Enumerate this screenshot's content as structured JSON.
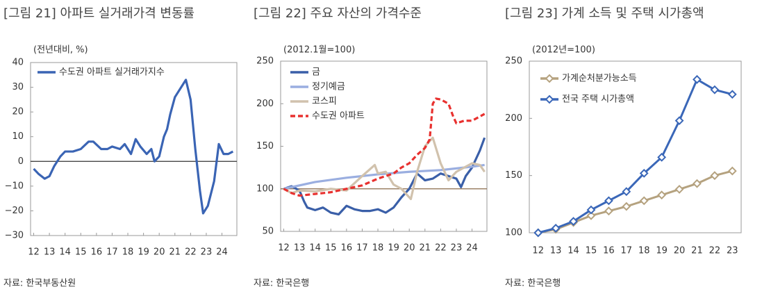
{
  "chart_data": [
    {
      "type": "line",
      "title": "[그림 21] 아파트 실거래가격 변동률",
      "subtitle": "(전년대비, %)",
      "source": "자료: 한국부동산원",
      "xlim": [
        11.8,
        24.95
      ],
      "xticks": [
        12,
        13,
        14,
        15,
        16,
        17,
        18,
        19,
        20,
        21,
        22,
        23,
        24
      ],
      "ylim": [
        -30,
        40
      ],
      "yticks": [
        {
          "value": -30,
          "label": "−30"
        },
        {
          "value": -20,
          "label": "−20"
        },
        {
          "value": -10,
          "label": "−10"
        },
        0,
        10,
        20,
        30,
        40
      ],
      "reference_line": 0,
      "reference_color": "#333333",
      "series": [
        {
          "name": "수도권 아파트 실거래가지수",
          "color": "#3a64b4",
          "x": [
            12,
            12.3,
            12.7,
            13,
            13.3,
            13.7,
            14,
            14.5,
            15,
            15.5,
            15.8,
            16.3,
            16.7,
            17,
            17.5,
            17.8,
            18.2,
            18.5,
            18.8,
            19.2,
            19.5,
            19.7,
            20,
            20.3,
            20.5,
            20.7,
            21,
            21.2,
            21.5,
            21.7,
            22,
            22.3,
            22.6,
            22.8,
            23.1,
            23.5,
            23.8,
            24.1,
            24.4,
            24.7
          ],
          "values": [
            -3,
            -5,
            -7,
            -6,
            -2,
            2,
            4,
            4,
            5,
            8,
            8,
            5,
            5,
            6,
            5,
            7,
            3,
            9,
            6,
            3,
            5,
            0,
            2,
            10,
            13,
            19,
            26,
            28,
            31,
            33,
            25,
            5,
            -12,
            -21,
            -18,
            -8,
            7,
            3,
            3,
            4
          ]
        }
      ]
    },
    {
      "type": "line",
      "title": "[그림 22] 주요 자산의 가격수준",
      "subtitle": "(2012.1월=100)",
      "source": "자료: 한국은행",
      "xlim": [
        11.8,
        24.95
      ],
      "xticks": [
        12,
        13,
        14,
        15,
        16,
        17,
        18,
        19,
        20,
        21,
        22,
        23,
        24
      ],
      "ylim": [
        50,
        250
      ],
      "yticks": [
        50,
        100,
        150,
        200,
        250
      ],
      "reference_line": 100,
      "reference_color": "#8a6a4a",
      "series": [
        {
          "name": "금",
          "color": "#3a5fa8",
          "style": "solid",
          "x": [
            12,
            12.5,
            13,
            13.3,
            13.5,
            14,
            14.5,
            15,
            15.5,
            16,
            16.5,
            17,
            17.5,
            18,
            18.5,
            19,
            19.5,
            20,
            20.5,
            21,
            21.5,
            22,
            22.5,
            23,
            23.3,
            23.6,
            24,
            24.5,
            24.8
          ],
          "values": [
            100,
            103,
            98,
            85,
            78,
            75,
            78,
            72,
            70,
            80,
            76,
            74,
            74,
            76,
            72,
            78,
            90,
            100,
            118,
            110,
            112,
            118,
            115,
            112,
            102,
            115,
            125,
            145,
            160
          ]
        },
        {
          "name": "정기예금",
          "color": "#9aaee0",
          "style": "solid",
          "x": [
            12,
            14,
            16,
            18,
            20,
            22,
            24,
            24.8
          ],
          "values": [
            100,
            108,
            113,
            117,
            120,
            122,
            126,
            128
          ]
        },
        {
          "name": "코스피",
          "color": "#d1c2ad",
          "style": "solid",
          "x": [
            12,
            12.5,
            13,
            14,
            15,
            16,
            17,
            17.8,
            18,
            18.5,
            19,
            19.5,
            20.1,
            20.5,
            21,
            21.5,
            22,
            22.5,
            23,
            23.5,
            24,
            24.5,
            24.8
          ],
          "values": [
            100,
            95,
            98,
            97,
            100,
            98,
            115,
            128,
            118,
            120,
            105,
            100,
            88,
            120,
            150,
            160,
            130,
            110,
            120,
            125,
            130,
            128,
            120
          ]
        },
        {
          "name": "수도권 아파트",
          "color": "#e8312f",
          "style": "dashed",
          "x": [
            12,
            12.5,
            13,
            14,
            15,
            16,
            17,
            18,
            19,
            19.5,
            20,
            20.5,
            21,
            21.3,
            21.5,
            21.7,
            22,
            22.5,
            22.8,
            23,
            23.5,
            24,
            24.5,
            24.8
          ],
          "values": [
            100,
            95,
            92,
            94,
            96,
            100,
            104,
            112,
            118,
            125,
            130,
            140,
            148,
            158,
            200,
            206,
            205,
            200,
            185,
            177,
            180,
            180,
            185,
            188
          ]
        }
      ]
    },
    {
      "type": "line",
      "title": "[그림 23] 가계 소득 및 주택 시가총액",
      "subtitle": "(2012년=100)",
      "source": "자료: 한국은행",
      "categories": [
        "12",
        "13",
        "14",
        "15",
        "16",
        "17",
        "18",
        "19",
        "20",
        "21",
        "22",
        "23"
      ],
      "ylim": [
        100,
        250
      ],
      "yticks": [
        100,
        150,
        200,
        250
      ],
      "marker": "diamond",
      "series": [
        {
          "name": "가계순처분가능소득",
          "color": "#b5a27f",
          "values": [
            100,
            103,
            109,
            115,
            119,
            123,
            128,
            133,
            138,
            143,
            150,
            154
          ]
        },
        {
          "name": "전국 주택 시가총액",
          "color": "#3a67b8",
          "values": [
            100,
            104,
            110,
            120,
            128,
            136,
            152,
            166,
            198,
            234,
            225,
            221
          ]
        }
      ]
    }
  ]
}
